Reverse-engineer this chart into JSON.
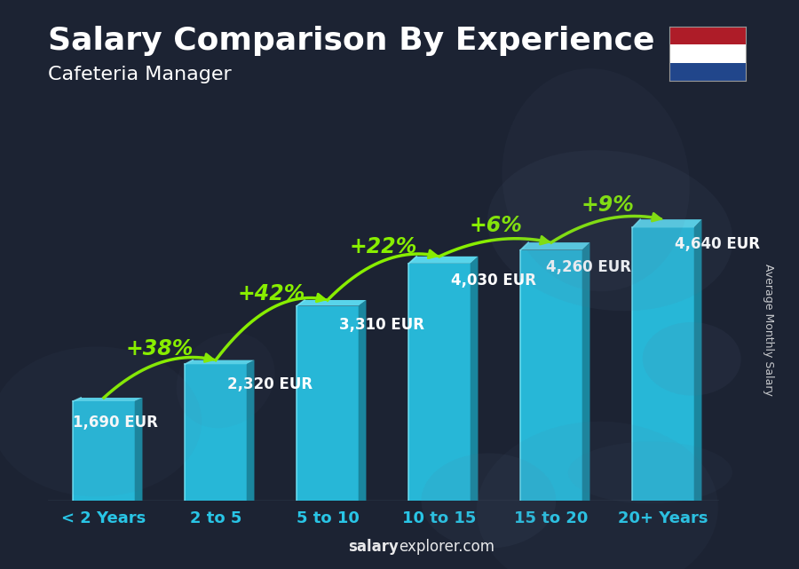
{
  "title": "Salary Comparison By Experience",
  "subtitle": "Cafeteria Manager",
  "categories": [
    "< 2 Years",
    "2 to 5",
    "5 to 10",
    "10 to 15",
    "15 to 20",
    "20+ Years"
  ],
  "values": [
    1690,
    2320,
    3310,
    4030,
    4260,
    4640
  ],
  "labels": [
    "1,690 EUR",
    "2,320 EUR",
    "3,310 EUR",
    "4,030 EUR",
    "4,260 EUR",
    "4,640 EUR"
  ],
  "increases": [
    null,
    "+38%",
    "+42%",
    "+22%",
    "+6%",
    "+9%"
  ],
  "bar_face_color": "#29c5e6",
  "bar_top_color": "#5ddff5",
  "bar_side_color": "#1a8fa8",
  "bar_edge_color": "#40d8f0",
  "bg_color": "#1c2333",
  "title_color": "#ffffff",
  "subtitle_color": "#ffffff",
  "label_color": "#ffffff",
  "increase_color": "#88ee00",
  "tick_color": "#29c5e6",
  "ylabel_text": "Average Monthly Salary",
  "watermark_bold": "salary",
  "watermark_normal": "explorer.com",
  "ylim": [
    0,
    5800
  ],
  "bar_width": 0.55,
  "title_fontsize": 26,
  "subtitle_fontsize": 16,
  "category_fontsize": 13,
  "label_fontsize": 12,
  "increase_fontsize": 17
}
